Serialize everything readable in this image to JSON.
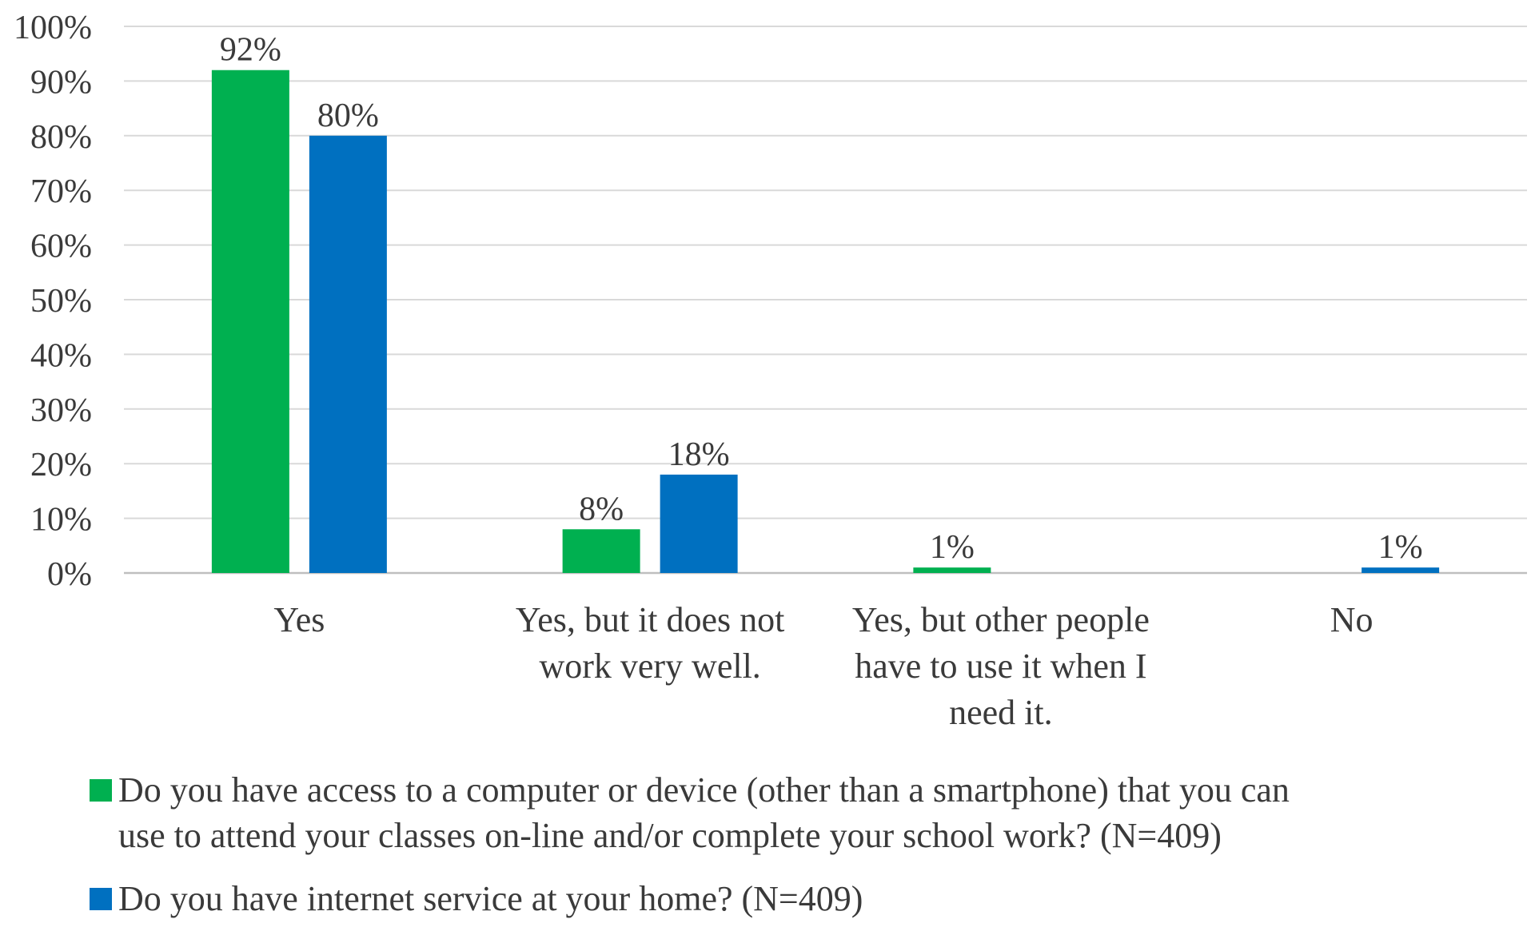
{
  "chart_data": {
    "type": "bar",
    "categories": [
      "Yes",
      "Yes, but it does not work very well.",
      "Yes, but other people have to use it when I need it.",
      "No"
    ],
    "category_label_lines": [
      [
        "Yes"
      ],
      [
        "Yes, but it does not",
        "work very well."
      ],
      [
        "Yes, but other people",
        "have to use it when I",
        "need it."
      ],
      [
        "No"
      ]
    ],
    "series": [
      {
        "name": "Do you have access to a computer or device (other than a smartphone) that you can use to attend your classes on-line and/or complete your school work? (N=409)",
        "legend_lines": [
          "Do you have access to a computer or device (other than a smartphone) that you can",
          "use to attend your classes on-line and/or complete your school work? (N=409)"
        ],
        "color": "#00b050",
        "values": [
          92,
          8,
          1,
          null
        ],
        "labels": [
          "92%",
          "8%",
          "1%",
          null
        ]
      },
      {
        "name": "Do you have internet service at your home? (N=409)",
        "legend_lines": [
          "Do you have internet service at your home? (N=409)"
        ],
        "color": "#0070c0",
        "values": [
          80,
          18,
          null,
          1
        ],
        "labels": [
          "80%",
          "18%",
          null,
          "1%"
        ]
      }
    ],
    "yticks": [
      "0%",
      "10%",
      "20%",
      "30%",
      "40%",
      "50%",
      "60%",
      "70%",
      "80%",
      "90%",
      "100%"
    ],
    "ylim": [
      0,
      100
    ],
    "grid": true,
    "legend_position": "bottom"
  }
}
